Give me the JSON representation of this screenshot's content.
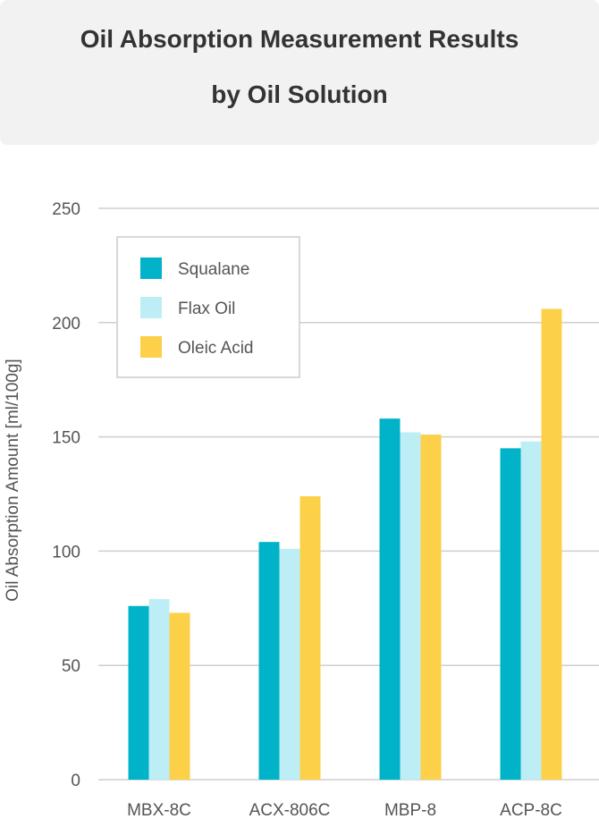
{
  "title": {
    "line1": "Oil Absorption Measurement Results",
    "line2": "by Oil Solution"
  },
  "chart_data": {
    "type": "bar",
    "title": "Oil Absorption Measurement Results by Oil Solution",
    "xlabel": "",
    "ylabel": "Oil Absorption Amount [ml/100g]",
    "categories": [
      "MBX-8C",
      "ACX-806C",
      "MBP-8",
      "ACP-8C"
    ],
    "ylim": [
      0,
      250
    ],
    "yticks": [
      0,
      50,
      100,
      150,
      200,
      250
    ],
    "grid": true,
    "legend_position": "top-left",
    "series": [
      {
        "name": "Squalane",
        "color": "#00b3c8",
        "values": [
          76,
          104,
          158,
          145
        ]
      },
      {
        "name": "Flax Oil",
        "color": "#bdeef5",
        "values": [
          79,
          101,
          152,
          148
        ]
      },
      {
        "name": "Oleic Acid",
        "color": "#fdd04a",
        "values": [
          73,
          124,
          151,
          206
        ]
      }
    ]
  }
}
